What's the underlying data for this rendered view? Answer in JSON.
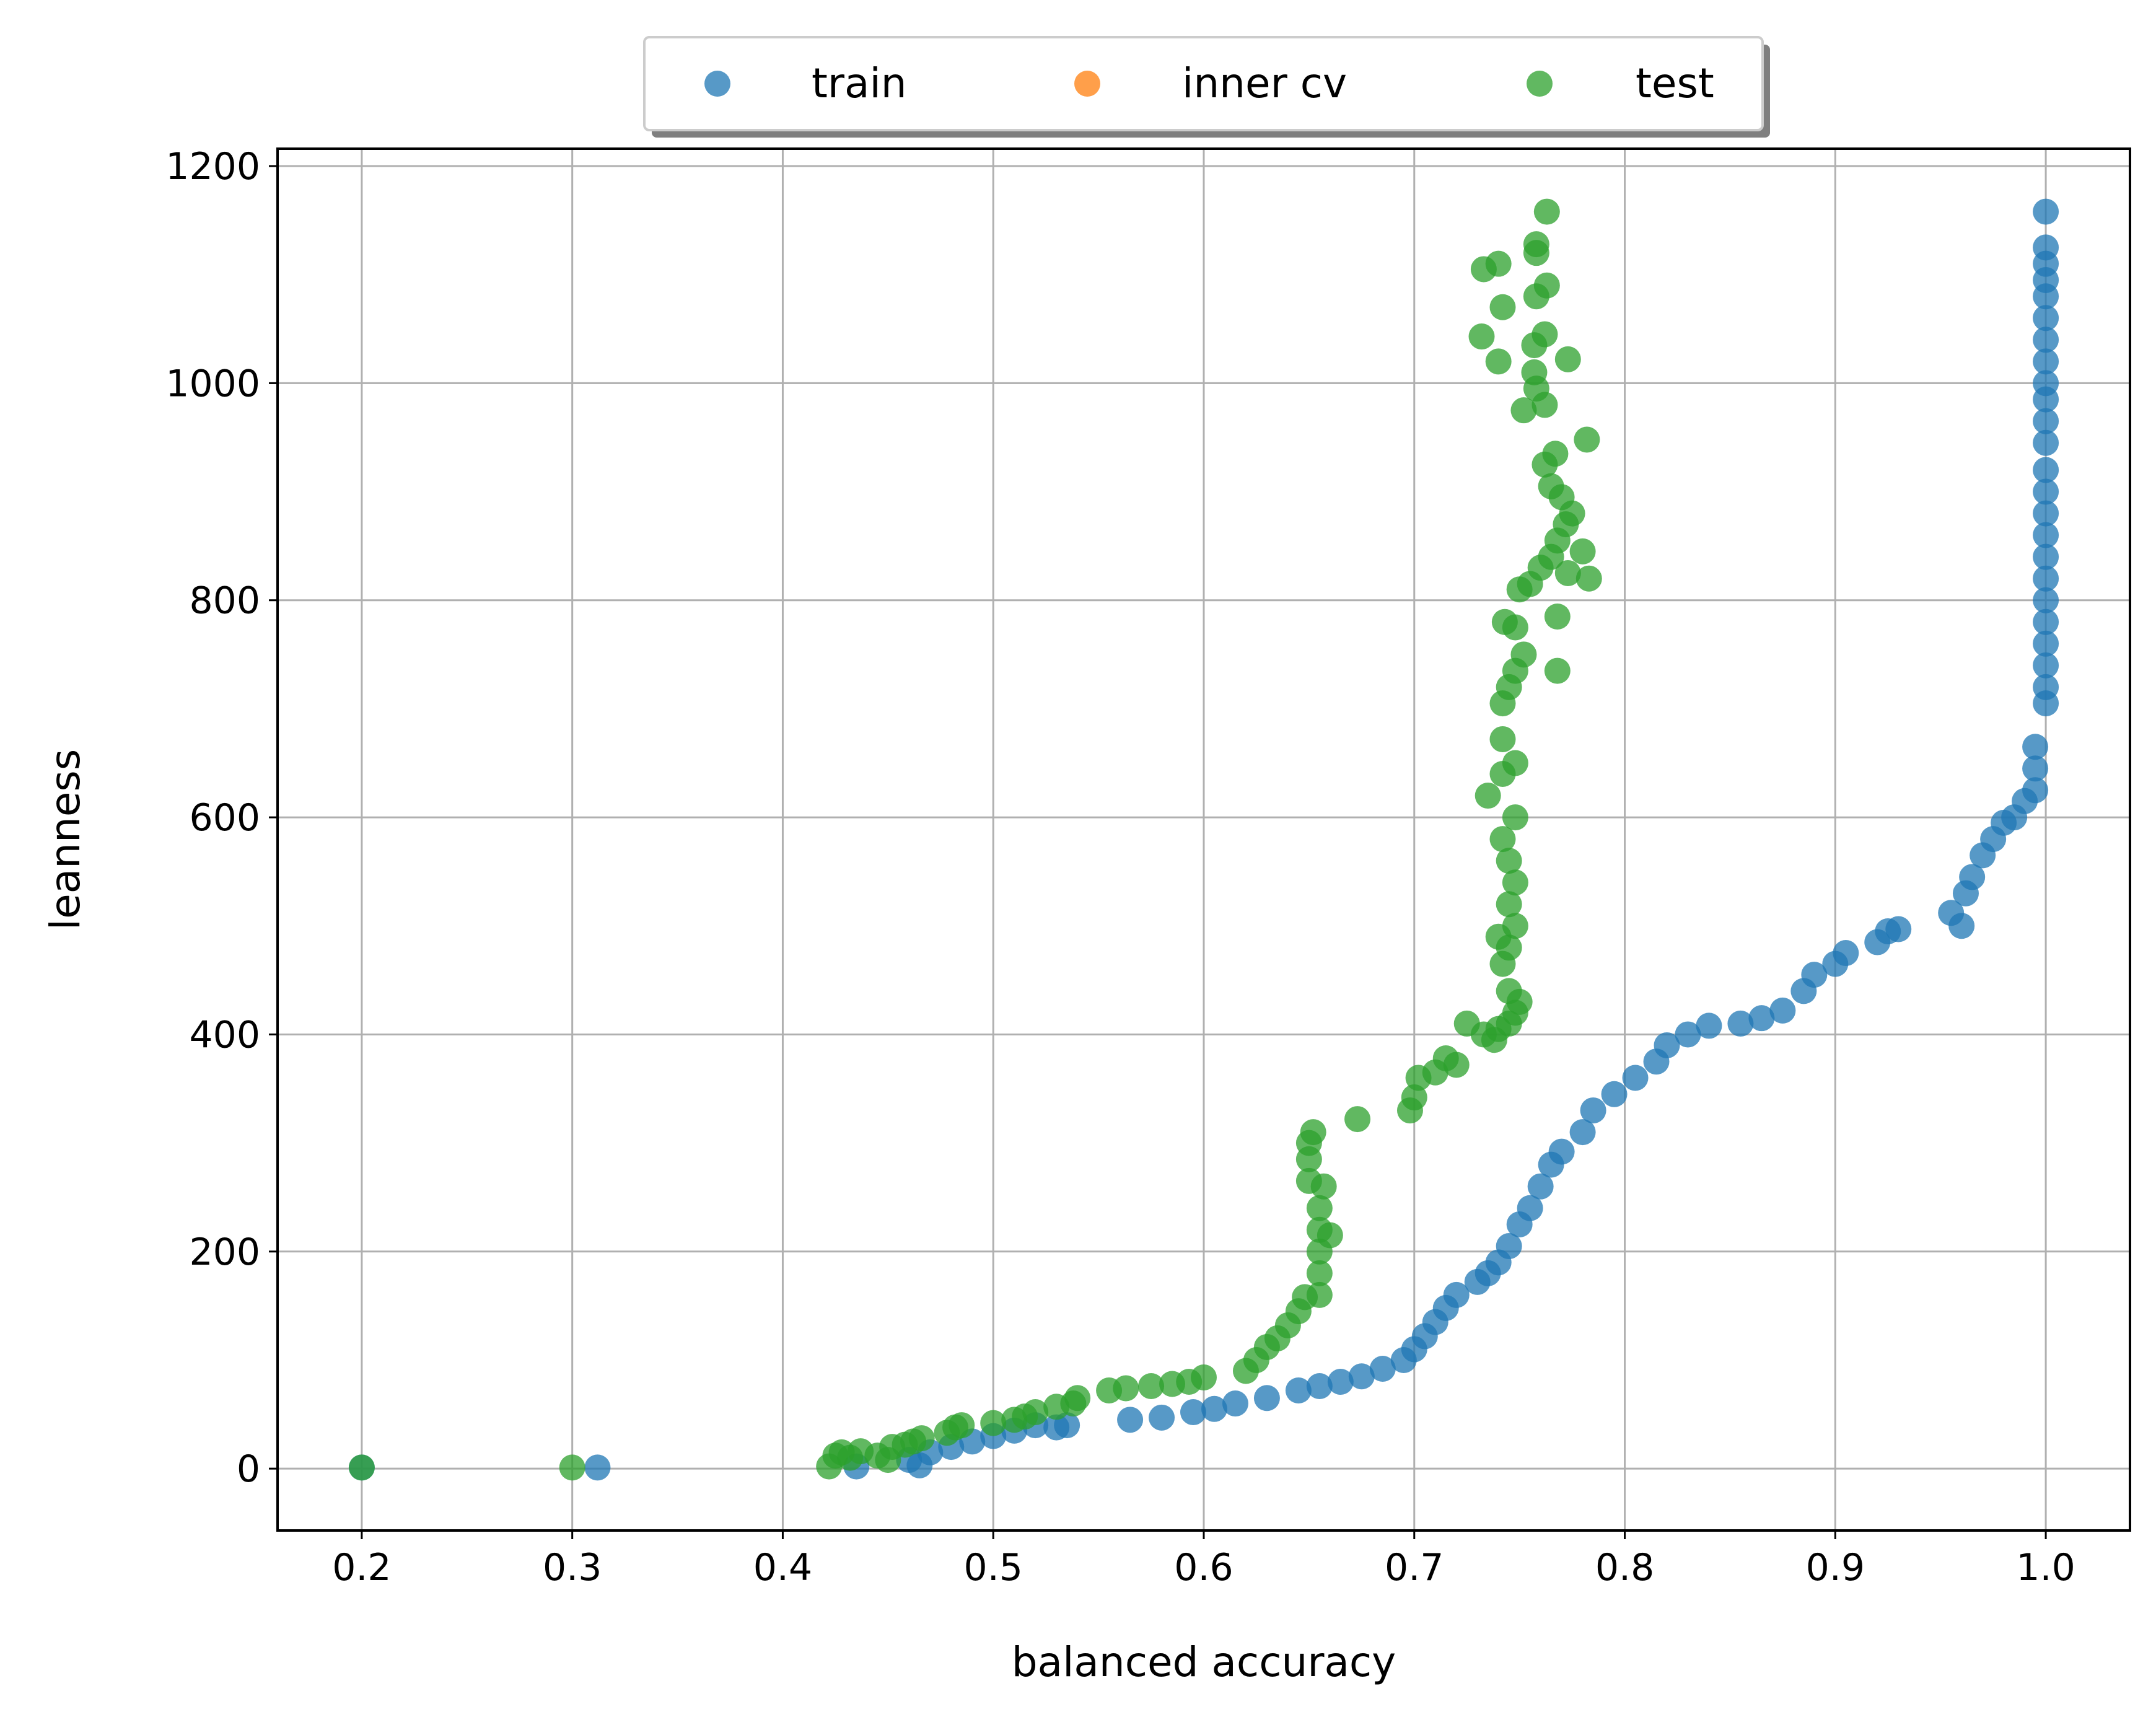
{
  "chart_data": {
    "type": "scatter",
    "title": "",
    "xlabel": "balanced accuracy",
    "ylabel": "leanness",
    "xlim": [
      0.16,
      1.04
    ],
    "ylim": [
      -57,
      1216
    ],
    "xticks": [
      "0.2",
      "0.3",
      "0.4",
      "0.5",
      "0.6",
      "0.7",
      "0.8",
      "0.9",
      "1.0"
    ],
    "yticks": [
      "0",
      "200",
      "400",
      "600",
      "800",
      "1000",
      "1200"
    ],
    "xtick_values": [
      0.2,
      0.3,
      0.4,
      0.5,
      0.6,
      0.7,
      0.8,
      0.9,
      1.0
    ],
    "ytick_values": [
      0,
      200,
      400,
      600,
      800,
      1000,
      1200
    ],
    "grid": true,
    "legend_placement": "top-center-outside",
    "colors": {
      "train": "#1f77b4",
      "inner cv": "#ff7f0e",
      "test": "#2ca02c"
    },
    "series": [
      {
        "name": "train",
        "points": [
          [
            0.2,
            1
          ],
          [
            0.312,
            1
          ],
          [
            0.435,
            2
          ],
          [
            0.465,
            3
          ],
          [
            0.46,
            8
          ],
          [
            0.47,
            15
          ],
          [
            0.48,
            20
          ],
          [
            0.49,
            25
          ],
          [
            0.5,
            30
          ],
          [
            0.51,
            35
          ],
          [
            0.52,
            40
          ],
          [
            0.53,
            38
          ],
          [
            0.535,
            40
          ],
          [
            0.565,
            45
          ],
          [
            0.58,
            47
          ],
          [
            0.595,
            52
          ],
          [
            0.605,
            55
          ],
          [
            0.615,
            60
          ],
          [
            0.63,
            65
          ],
          [
            0.645,
            72
          ],
          [
            0.655,
            76
          ],
          [
            0.665,
            80
          ],
          [
            0.675,
            85
          ],
          [
            0.685,
            92
          ],
          [
            0.695,
            100
          ],
          [
            0.7,
            110
          ],
          [
            0.705,
            122
          ],
          [
            0.71,
            135
          ],
          [
            0.715,
            148
          ],
          [
            0.72,
            160
          ],
          [
            0.73,
            172
          ],
          [
            0.735,
            180
          ],
          [
            0.74,
            190
          ],
          [
            0.745,
            205
          ],
          [
            0.75,
            225
          ],
          [
            0.755,
            240
          ],
          [
            0.76,
            260
          ],
          [
            0.765,
            280
          ],
          [
            0.77,
            292
          ],
          [
            0.78,
            310
          ],
          [
            0.785,
            330
          ],
          [
            0.795,
            345
          ],
          [
            0.805,
            360
          ],
          [
            0.815,
            375
          ],
          [
            0.82,
            390
          ],
          [
            0.83,
            400
          ],
          [
            0.84,
            408
          ],
          [
            0.855,
            410
          ],
          [
            0.865,
            415
          ],
          [
            0.875,
            422
          ],
          [
            0.885,
            440
          ],
          [
            0.89,
            455
          ],
          [
            0.9,
            465
          ],
          [
            0.905,
            475
          ],
          [
            0.92,
            485
          ],
          [
            0.925,
            495
          ],
          [
            0.93,
            497
          ],
          [
            0.955,
            512
          ],
          [
            0.96,
            500
          ],
          [
            0.962,
            530
          ],
          [
            0.965,
            545
          ],
          [
            0.97,
            565
          ],
          [
            0.975,
            580
          ],
          [
            0.98,
            595
          ],
          [
            0.985,
            600
          ],
          [
            0.99,
            615
          ],
          [
            0.995,
            625
          ],
          [
            0.995,
            645
          ],
          [
            0.995,
            665
          ],
          [
            1.0,
            705
          ],
          [
            1.0,
            720
          ],
          [
            1.0,
            740
          ],
          [
            1.0,
            760
          ],
          [
            1.0,
            780
          ],
          [
            1.0,
            800
          ],
          [
            1.0,
            820
          ],
          [
            1.0,
            840
          ],
          [
            1.0,
            860
          ],
          [
            1.0,
            880
          ],
          [
            1.0,
            900
          ],
          [
            1.0,
            920
          ],
          [
            1.0,
            945
          ],
          [
            1.0,
            965
          ],
          [
            1.0,
            985
          ],
          [
            1.0,
            1000
          ],
          [
            1.0,
            1020
          ],
          [
            1.0,
            1040
          ],
          [
            1.0,
            1060
          ],
          [
            1.0,
            1080
          ],
          [
            1.0,
            1095
          ],
          [
            1.0,
            1110
          ],
          [
            1.0,
            1125
          ],
          [
            1.0,
            1158
          ]
        ]
      },
      {
        "name": "inner cv",
        "points": []
      },
      {
        "name": "test",
        "points": [
          [
            0.2,
            1
          ],
          [
            0.3,
            1
          ],
          [
            0.422,
            2
          ],
          [
            0.425,
            12
          ],
          [
            0.428,
            15
          ],
          [
            0.432,
            10
          ],
          [
            0.437,
            16
          ],
          [
            0.445,
            12
          ],
          [
            0.45,
            8
          ],
          [
            0.452,
            20
          ],
          [
            0.458,
            22
          ],
          [
            0.462,
            25
          ],
          [
            0.466,
            28
          ],
          [
            0.478,
            33
          ],
          [
            0.482,
            38
          ],
          [
            0.485,
            40
          ],
          [
            0.5,
            42
          ],
          [
            0.51,
            45
          ],
          [
            0.515,
            48
          ],
          [
            0.52,
            52
          ],
          [
            0.53,
            57
          ],
          [
            0.538,
            60
          ],
          [
            0.54,
            65
          ],
          [
            0.555,
            72
          ],
          [
            0.563,
            74
          ],
          [
            0.575,
            76
          ],
          [
            0.585,
            78
          ],
          [
            0.593,
            80
          ],
          [
            0.6,
            84
          ],
          [
            0.62,
            90
          ],
          [
            0.625,
            100
          ],
          [
            0.63,
            112
          ],
          [
            0.635,
            120
          ],
          [
            0.64,
            132
          ],
          [
            0.645,
            145
          ],
          [
            0.648,
            158
          ],
          [
            0.65,
            265
          ],
          [
            0.65,
            285
          ],
          [
            0.65,
            300
          ],
          [
            0.652,
            310
          ],
          [
            0.655,
            160
          ],
          [
            0.655,
            180
          ],
          [
            0.655,
            200
          ],
          [
            0.655,
            220
          ],
          [
            0.655,
            240
          ],
          [
            0.657,
            260
          ],
          [
            0.66,
            215
          ],
          [
            0.673,
            322
          ],
          [
            0.698,
            330
          ],
          [
            0.7,
            342
          ],
          [
            0.702,
            360
          ],
          [
            0.71,
            365
          ],
          [
            0.715,
            378
          ],
          [
            0.72,
            372
          ],
          [
            0.725,
            410
          ],
          [
            0.733,
            400
          ],
          [
            0.738,
            395
          ],
          [
            0.74,
            405
          ],
          [
            0.745,
            410
          ],
          [
            0.748,
            420
          ],
          [
            0.75,
            430
          ],
          [
            0.745,
            440
          ],
          [
            0.742,
            465
          ],
          [
            0.74,
            490
          ],
          [
            0.745,
            480
          ],
          [
            0.748,
            500
          ],
          [
            0.745,
            520
          ],
          [
            0.748,
            540
          ],
          [
            0.745,
            560
          ],
          [
            0.742,
            580
          ],
          [
            0.748,
            600
          ],
          [
            0.735,
            620
          ],
          [
            0.742,
            640
          ],
          [
            0.748,
            650
          ],
          [
            0.742,
            672
          ],
          [
            0.742,
            705
          ],
          [
            0.745,
            720
          ],
          [
            0.748,
            735
          ],
          [
            0.752,
            750
          ],
          [
            0.743,
            780
          ],
          [
            0.748,
            775
          ],
          [
            0.75,
            810
          ],
          [
            0.755,
            815
          ],
          [
            0.76,
            830
          ],
          [
            0.765,
            840
          ],
          [
            0.768,
            855
          ],
          [
            0.772,
            870
          ],
          [
            0.775,
            880
          ],
          [
            0.77,
            895
          ],
          [
            0.765,
            905
          ],
          [
            0.762,
            925
          ],
          [
            0.767,
            935
          ],
          [
            0.768,
            735
          ],
          [
            0.768,
            785
          ],
          [
            0.78,
            845
          ],
          [
            0.783,
            820
          ],
          [
            0.782,
            948
          ],
          [
            0.773,
            825
          ],
          [
            0.752,
            975
          ],
          [
            0.758,
            995
          ],
          [
            0.762,
            980
          ],
          [
            0.757,
            1010
          ],
          [
            0.773,
            1022
          ],
          [
            0.757,
            1035
          ],
          [
            0.762,
            1045
          ],
          [
            0.732,
            1043
          ],
          [
            0.74,
            1020
          ],
          [
            0.758,
            1080
          ],
          [
            0.763,
            1090
          ],
          [
            0.742,
            1070
          ],
          [
            0.733,
            1105
          ],
          [
            0.74,
            1110
          ],
          [
            0.758,
            1120
          ],
          [
            0.758,
            1128
          ],
          [
            0.763,
            1158
          ]
        ]
      }
    ]
  }
}
